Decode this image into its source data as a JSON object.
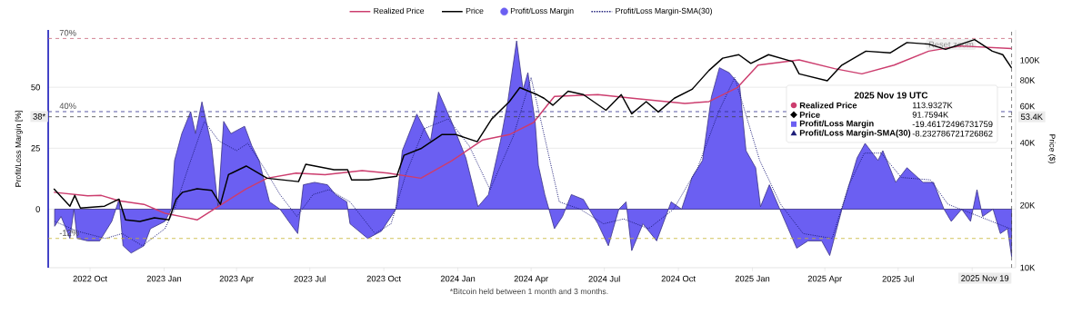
{
  "chart_data": {
    "type": "line",
    "ylabel": "Profit/Loss Margin [%]",
    "y2label": "Price ($)",
    "xlim": [
      "2022-08-10",
      "2025-11-24"
    ],
    "xticks": [
      {
        "value": "2022-10-01",
        "label": "2022 Oct"
      },
      {
        "value": "2023-01-01",
        "label": "2023 Jan"
      },
      {
        "value": "2023-04-01",
        "label": "2023 Apr"
      },
      {
        "value": "2023-07-01",
        "label": "2023 Jul"
      },
      {
        "value": "2023-10-01",
        "label": "2023 Oct"
      },
      {
        "value": "2024-01-01",
        "label": "2024 Jan"
      },
      {
        "value": "2024-04-01",
        "label": "2024 Apr"
      },
      {
        "value": "2024-07-01",
        "label": "2024 Jul"
      },
      {
        "value": "2024-10-01",
        "label": "2024 Oct"
      },
      {
        "value": "2025-01-01",
        "label": "2025 Jan"
      },
      {
        "value": "2025-04-01",
        "label": "2025 Apr"
      },
      {
        "value": "2025-07-01",
        "label": "2025 Jul"
      },
      {
        "value": "2025-10-01",
        "label": null
      }
    ],
    "ylim": [
      -24,
      73.5
    ],
    "yticks": [
      0,
      25,
      50
    ],
    "y2lim": [
      10000,
      140000
    ],
    "y2ticks": [
      {
        "value": 10000,
        "label": "10K"
      },
      {
        "value": 20000,
        "label": "20K"
      },
      {
        "value": 40000,
        "label": "40K"
      },
      {
        "value": 60000,
        "label": "60K"
      },
      {
        "value": 80000,
        "label": "80K"
      },
      {
        "value": 100000,
        "label": "100K"
      }
    ],
    "log": "y2",
    "grid": "y",
    "legend": "top",
    "series": [
      {
        "name": "Realized Price",
        "color": "#cc3d6e",
        "axis": "y2",
        "x": [
          "2022-08-17",
          "2022-09-28",
          "2022-10-15",
          "2022-11-06",
          "2022-12-07",
          "2023-01-02",
          "2023-01-24",
          "2023-02-11",
          "2023-03-10",
          "2023-04-13",
          "2023-05-09",
          "2023-06-14",
          "2023-07-20",
          "2023-09-04",
          "2023-10-06",
          "2023-11-16",
          "2023-12-24",
          "2024-02-01",
          "2024-03-05",
          "2024-04-04",
          "2024-04-21",
          "2024-04-30",
          "2024-06-23",
          "2024-08-05",
          "2024-10-09",
          "2024-11-08",
          "2024-12-13",
          "2025-01-08",
          "2025-02-28",
          "2025-04-13",
          "2025-05-17",
          "2025-06-26",
          "2025-08-08",
          "2025-09-16",
          "2025-11-19"
        ],
        "values": [
          23100,
          22200,
          22300,
          21000,
          20200,
          18300,
          17600,
          17000,
          19800,
          24000,
          27000,
          28600,
          28100,
          29400,
          28600,
          27000,
          32700,
          41300,
          43800,
          50100,
          60700,
          66900,
          68300,
          65600,
          61900,
          63200,
          73700,
          94700,
          100400,
          91100,
          86000,
          94700,
          110600,
          117200,
          113932.7
        ]
      },
      {
        "name": "Price",
        "color": "#000000",
        "axis": "y2",
        "x": [
          "2022-08-17",
          "2022-09-06",
          "2022-09-12",
          "2022-09-19",
          "2022-10-19",
          "2022-11-06",
          "2022-11-14",
          "2022-12-02",
          "2022-12-20",
          "2023-01-07",
          "2023-01-16",
          "2023-01-24",
          "2023-02-11",
          "2023-03-01",
          "2023-03-12",
          "2023-03-22",
          "2023-04-13",
          "2023-05-09",
          "2023-06-17",
          "2023-06-26",
          "2023-07-31",
          "2023-08-17",
          "2023-08-22",
          "2023-09-12",
          "2023-10-17",
          "2023-10-26",
          "2023-11-16",
          "2023-12-12",
          "2023-12-30",
          "2024-01-25",
          "2024-02-12",
          "2024-03-05",
          "2024-03-18",
          "2024-04-09",
          "2024-04-17",
          "2024-04-28",
          "2024-05-17",
          "2024-06-05",
          "2024-07-03",
          "2024-07-22",
          "2024-08-04",
          "2024-08-22",
          "2024-09-06",
          "2024-09-26",
          "2024-10-18",
          "2024-11-08",
          "2024-11-25",
          "2024-12-15",
          "2024-12-30",
          "2025-01-21",
          "2025-02-20",
          "2025-02-28",
          "2025-04-04",
          "2025-04-22",
          "2025-05-22",
          "2025-06-21",
          "2025-07-12",
          "2025-08-08",
          "2025-08-29",
          "2025-10-04",
          "2025-10-26",
          "2025-11-08",
          "2025-11-19"
        ],
        "values": [
          24000,
          19800,
          22300,
          19400,
          19800,
          21400,
          17000,
          16700,
          17400,
          17000,
          21400,
          23100,
          24000,
          23600,
          20200,
          28100,
          30900,
          27000,
          26000,
          31500,
          29700,
          29700,
          26500,
          26500,
          27600,
          34800,
          37500,
          43800,
          43800,
          40500,
          52100,
          63200,
          73800,
          68100,
          65600,
          60700,
          70900,
          68300,
          57400,
          68300,
          55200,
          63200,
          56300,
          65600,
          72400,
          89300,
          102300,
          106400,
          96600,
          106400,
          98500,
          86000,
          79600,
          94700,
          110600,
          108500,
          121700,
          119600,
          112800,
          125700,
          110600,
          106400,
          91759.4
        ]
      },
      {
        "name": "Profit/Loss Margin",
        "type": "area",
        "color": "#6b5ff2",
        "x": [
          "2022-08-18",
          "2022-08-26",
          "2022-09-06",
          "2022-09-11",
          "2022-09-15",
          "2022-09-28",
          "2022-10-13",
          "2022-10-28",
          "2022-11-06",
          "2022-11-11",
          "2022-11-21",
          "2022-12-07",
          "2022-12-15",
          "2023-01-02",
          "2023-01-10",
          "2023-01-14",
          "2023-01-23",
          "2023-02-03",
          "2023-02-09",
          "2023-02-17",
          "2023-03-01",
          "2023-03-09",
          "2023-03-16",
          "2023-03-25",
          "2023-04-11",
          "2023-04-20",
          "2023-04-29",
          "2023-05-12",
          "2023-05-25",
          "2023-06-07",
          "2023-06-16",
          "2023-06-23",
          "2023-07-07",
          "2023-07-23",
          "2023-08-02",
          "2023-08-16",
          "2023-08-20",
          "2023-09-11",
          "2023-09-28",
          "2023-10-16",
          "2023-10-24",
          "2023-11-11",
          "2023-11-28",
          "2023-12-08",
          "2023-12-24",
          "2024-01-11",
          "2024-01-26",
          "2024-02-08",
          "2024-02-23",
          "2024-03-03",
          "2024-03-14",
          "2024-03-22",
          "2024-03-28",
          "2024-04-06",
          "2024-04-10",
          "2024-04-18",
          "2024-04-30",
          "2024-05-10",
          "2024-05-21",
          "2024-06-05",
          "2024-06-23",
          "2024-07-06",
          "2024-07-19",
          "2024-07-28",
          "2024-08-04",
          "2024-08-18",
          "2024-09-04",
          "2024-09-22",
          "2024-10-05",
          "2024-10-18",
          "2024-10-31",
          "2024-11-11",
          "2024-11-21",
          "2024-12-03",
          "2024-12-16",
          "2024-12-24",
          "2025-01-05",
          "2025-01-11",
          "2025-01-22",
          "2025-02-04",
          "2025-02-25",
          "2025-03-11",
          "2025-03-28",
          "2025-04-07",
          "2025-04-23",
          "2025-05-11",
          "2025-05-21",
          "2025-06-06",
          "2025-06-12",
          "2025-06-28",
          "2025-07-12",
          "2025-08-01",
          "2025-08-14",
          "2025-08-27",
          "2025-09-05",
          "2025-09-18",
          "2025-09-29",
          "2025-10-07",
          "2025-10-14",
          "2025-10-27",
          "2025-11-05",
          "2025-11-14",
          "2025-11-19"
        ],
        "values": [
          -7,
          -3,
          -12,
          0,
          -12,
          -13,
          -13,
          -5,
          4,
          -15,
          -18,
          -15,
          -8,
          -5,
          0,
          20,
          31,
          40,
          31,
          44,
          26,
          1,
          36,
          31,
          34,
          26,
          20,
          3,
          0,
          -6,
          -10,
          10,
          11,
          10,
          6,
          3,
          -6,
          -12,
          -9,
          0,
          24,
          39,
          28,
          48,
          36,
          21,
          1,
          6,
          28,
          44,
          69,
          49,
          56,
          36,
          18,
          6,
          -8,
          -3,
          6,
          4,
          -6,
          -15,
          0,
          3,
          -17,
          -6,
          -13,
          3,
          0,
          13,
          20,
          46,
          58,
          56,
          51,
          24,
          17,
          1,
          10,
          0,
          -16,
          -13,
          -13,
          -19,
          1,
          21,
          27,
          20,
          24,
          11,
          17,
          11,
          11,
          0,
          -5,
          0,
          -5,
          8,
          -3,
          0,
          -10,
          -8,
          -19.46
        ]
      },
      {
        "name": "Profit/Loss Margin-SMA(30)",
        "color": "#1c1c78",
        "line_style": "dotted",
        "x": [
          "2022-08-18",
          "2022-09-15",
          "2022-10-20",
          "2022-11-10",
          "2022-12-05",
          "2023-01-02",
          "2023-01-14",
          "2023-02-01",
          "2023-02-20",
          "2023-03-10",
          "2023-04-01",
          "2023-04-15",
          "2023-05-05",
          "2023-05-25",
          "2023-06-15",
          "2023-07-05",
          "2023-07-25",
          "2023-08-20",
          "2023-09-20",
          "2023-10-10",
          "2023-10-28",
          "2023-11-20",
          "2023-12-20",
          "2024-01-15",
          "2024-02-10",
          "2024-03-10",
          "2024-04-01",
          "2024-04-12",
          "2024-05-06",
          "2024-06-01",
          "2024-06-30",
          "2024-07-25",
          "2024-08-25",
          "2024-09-25",
          "2024-10-25",
          "2024-11-20",
          "2024-12-10",
          "2025-01-10",
          "2025-02-05",
          "2025-03-05",
          "2025-04-10",
          "2025-05-01",
          "2025-05-20",
          "2025-06-10",
          "2025-07-05",
          "2025-08-10",
          "2025-09-01",
          "2025-10-10",
          "2025-11-19"
        ],
        "values": [
          -5,
          -9,
          -12,
          -10,
          -15,
          -8,
          0,
          18,
          36,
          28,
          24,
          27,
          17,
          6,
          -3,
          6,
          8,
          3,
          -10,
          -6,
          14,
          33,
          37,
          26,
          8,
          30,
          54,
          38,
          3,
          0,
          -6,
          -4,
          -8,
          0,
          17,
          40,
          54,
          20,
          2,
          -10,
          -12,
          10,
          23,
          23,
          13,
          12,
          2,
          -3,
          -8.23
        ]
      }
    ],
    "ref_lines": [
      {
        "axis": "y",
        "value": 70,
        "label": "70%",
        "color": "#c86478",
        "line_style": "dashed"
      },
      {
        "axis": "y",
        "value": 40,
        "label": "40%",
        "color": "#2c2c8c",
        "line_style": "dashed"
      },
      {
        "axis": "y",
        "value": -12,
        "label": "-12%",
        "color": "#c8b432",
        "line_style": "dashed"
      },
      {
        "axis": "y2",
        "value": 53400,
        "label": "53.4K",
        "line_style": "dashed"
      },
      {
        "axis": "x",
        "value": "2025-11-19",
        "label": "2025 Nov 19",
        "line_style": "dashed"
      }
    ],
    "annotations": [
      "*Bitcoin held between 1 month and 3 months.",
      "2025 Nov 19 UTC",
      "Realized Price",
      "113.9327K",
      "Price",
      "91.7594K",
      "Profit/Loss Margin",
      "-19.46172496731759",
      "Profit/Loss Margin-SMA(30)",
      "-8.232786721726862",
      "Reset zoom",
      {
        "text": "38*",
        "y": 38
      }
    ]
  }
}
